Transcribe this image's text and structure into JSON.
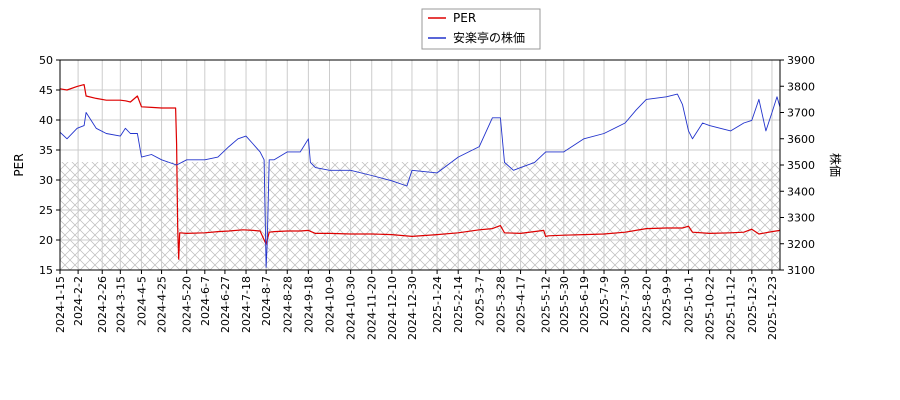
{
  "chart_data": {
    "type": "line",
    "legend": {
      "placement": "top-center",
      "entries": [
        "PER",
        "安楽亭の株価"
      ]
    },
    "colors": {
      "per": "#dd0000",
      "price": "#2233cc",
      "grid": "#cccccc",
      "hatch": "#bbbbbb"
    },
    "ylabel_left": "PER",
    "ylabel_right": "株価",
    "ylim_left": [
      15,
      50
    ],
    "ylim_right": [
      3100,
      3900
    ],
    "yticks_left": [
      "15",
      "20",
      "25",
      "30",
      "35",
      "40",
      "45",
      "50"
    ],
    "yticks_right": [
      "3100",
      "3200",
      "3300",
      "3400",
      "3500",
      "3600",
      "3700",
      "3800",
      "3900"
    ],
    "xlim": [
      "2024-01-15",
      "2025-12-31"
    ],
    "xticks": [
      "2024-1-15",
      "2024-2-2",
      "2024-2-26",
      "2024-3-15",
      "2024-4-5",
      "2024-4-25",
      "2024-5-20",
      "2024-6-7",
      "2024-6-27",
      "2024-7-18",
      "2024-8-7",
      "2024-8-28",
      "2024-9-18",
      "2024-10-9",
      "2024-10-30",
      "2024-11-20",
      "2024-12-10",
      "2024-12-30",
      "2025-1-24",
      "2025-2-14",
      "2025-3-7",
      "2025-3-28",
      "2025-4-17",
      "2025-5-12",
      "2025-5-30",
      "2025-6-19",
      "2025-7-9",
      "2025-7-30",
      "2025-8-20",
      "2025-9-9",
      "2025-10-1",
      "2025-10-22",
      "2025-11-12",
      "2025-12-3",
      "2025-12-23"
    ],
    "hatch_band_left": [
      15,
      33
    ],
    "grid": true,
    "series": [
      {
        "name": "PER",
        "axis": "left",
        "x": [
          "2024-01-15",
          "2024-01-22",
          "2024-02-01",
          "2024-02-08",
          "2024-02-10",
          "2024-02-20",
          "2024-03-01",
          "2024-03-15",
          "2024-03-20",
          "2024-03-25",
          "2024-04-01",
          "2024-04-05",
          "2024-04-15",
          "2024-04-25",
          "2024-05-09",
          "2024-05-10",
          "2024-05-11",
          "2024-05-12",
          "2024-05-13",
          "2024-05-20",
          "2024-06-07",
          "2024-06-20",
          "2024-07-01",
          "2024-07-15",
          "2024-07-25",
          "2024-08-01",
          "2024-08-07",
          "2024-08-10",
          "2024-08-15",
          "2024-08-28",
          "2024-09-10",
          "2024-09-18",
          "2024-09-25",
          "2024-10-09",
          "2024-10-30",
          "2024-11-20",
          "2024-12-10",
          "2024-12-30",
          "2025-01-24",
          "2025-02-14",
          "2025-03-07",
          "2025-03-20",
          "2025-03-28",
          "2025-04-01",
          "2025-04-17",
          "2025-05-10",
          "2025-05-12",
          "2025-05-15",
          "2025-05-30",
          "2025-06-19",
          "2025-07-09",
          "2025-07-30",
          "2025-08-20",
          "2025-09-09",
          "2025-09-25",
          "2025-10-01",
          "2025-10-05",
          "2025-10-22",
          "2025-11-12",
          "2025-11-25",
          "2025-12-03",
          "2025-12-10",
          "2025-12-23",
          "2025-12-31"
        ],
        "values": [
          45.2,
          45.0,
          45.6,
          45.9,
          44.0,
          43.6,
          43.3,
          43.3,
          43.2,
          43.0,
          44.0,
          42.2,
          42.1,
          42.0,
          42.0,
          36.0,
          22.0,
          16.8,
          21.2,
          21.1,
          21.2,
          21.4,
          21.5,
          21.7,
          21.6,
          21.5,
          19.3,
          21.3,
          21.4,
          21.5,
          21.5,
          21.6,
          21.1,
          21.1,
          21.0,
          21.0,
          20.9,
          20.6,
          20.9,
          21.2,
          21.7,
          21.9,
          22.4,
          21.2,
          21.1,
          21.6,
          20.6,
          20.7,
          20.8,
          20.9,
          21.0,
          21.3,
          21.9,
          22.0,
          22.0,
          22.3,
          21.3,
          21.1,
          21.2,
          21.3,
          21.8,
          21.0,
          21.4,
          21.6
        ]
      },
      {
        "name": "安楽亭の株価",
        "axis": "right",
        "x": [
          "2024-01-15",
          "2024-01-22",
          "2024-02-01",
          "2024-02-08",
          "2024-02-10",
          "2024-02-20",
          "2024-03-01",
          "2024-03-15",
          "2024-03-20",
          "2024-03-25",
          "2024-04-01",
          "2024-04-05",
          "2024-04-15",
          "2024-04-25",
          "2024-05-10",
          "2024-05-20",
          "2024-06-07",
          "2024-06-20",
          "2024-07-01",
          "2024-07-10",
          "2024-07-18",
          "2024-07-25",
          "2024-08-01",
          "2024-08-05",
          "2024-08-07",
          "2024-08-08",
          "2024-08-10",
          "2024-08-15",
          "2024-08-28",
          "2024-09-10",
          "2024-09-18",
          "2024-09-20",
          "2024-09-25",
          "2024-10-09",
          "2024-10-30",
          "2024-11-20",
          "2024-12-10",
          "2024-12-25",
          "2024-12-30",
          "2025-01-24",
          "2025-02-14",
          "2025-03-07",
          "2025-03-20",
          "2025-03-28",
          "2025-04-01",
          "2025-04-10",
          "2025-04-17",
          "2025-05-01",
          "2025-05-12",
          "2025-05-30",
          "2025-06-19",
          "2025-07-09",
          "2025-07-30",
          "2025-08-10",
          "2025-08-20",
          "2025-09-09",
          "2025-09-20",
          "2025-09-25",
          "2025-10-01",
          "2025-10-05",
          "2025-10-15",
          "2025-10-22",
          "2025-11-12",
          "2025-11-25",
          "2025-12-03",
          "2025-12-10",
          "2025-12-17",
          "2025-12-23",
          "2025-12-28",
          "2025-12-31"
        ],
        "values": [
          3625,
          3600,
          3640,
          3650,
          3700,
          3640,
          3620,
          3610,
          3640,
          3620,
          3620,
          3530,
          3540,
          3520,
          3500,
          3520,
          3520,
          3530,
          3570,
          3600,
          3610,
          3580,
          3550,
          3520,
          3110,
          3200,
          3520,
          3520,
          3550,
          3550,
          3600,
          3510,
          3490,
          3480,
          3480,
          3460,
          3440,
          3420,
          3480,
          3470,
          3530,
          3570,
          3680,
          3680,
          3510,
          3480,
          3490,
          3510,
          3550,
          3550,
          3600,
          3620,
          3660,
          3710,
          3750,
          3760,
          3770,
          3730,
          3630,
          3600,
          3660,
          3650,
          3630,
          3660,
          3670,
          3750,
          3630,
          3700,
          3760,
          3720
        ]
      }
    ]
  }
}
